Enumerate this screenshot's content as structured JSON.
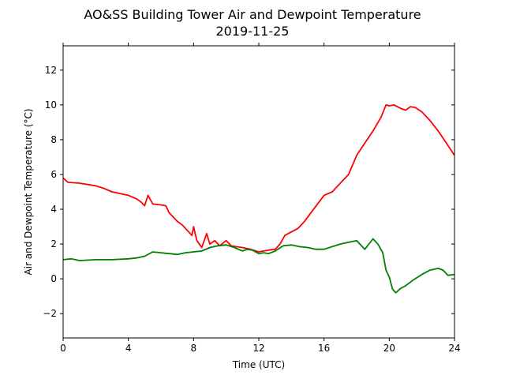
{
  "chart_data": {
    "type": "line",
    "title": "AO&SS Building Tower Air and Dewpoint Temperature",
    "subtitle": "2019-11-25",
    "xlabel": "Time (UTC)",
    "ylabel": "Air and Dewpoint Temperature (°C)",
    "xlim": [
      0,
      24
    ],
    "ylim": [
      -3.4,
      13.4
    ],
    "xticks": [
      0,
      4,
      8,
      12,
      16,
      20,
      24
    ],
    "yticks": [
      -2,
      0,
      2,
      4,
      6,
      8,
      10,
      12
    ],
    "xtick_labels": [
      "0",
      "4",
      "8",
      "12",
      "16",
      "20",
      "24"
    ],
    "ytick_labels": [
      "−2",
      "0",
      "2",
      "4",
      "6",
      "8",
      "10",
      "12"
    ],
    "grid": false,
    "legend": "none",
    "series": [
      {
        "color": "#ff0000",
        "x": [
          0,
          0.3,
          1,
          2,
          2.5,
          3,
          4,
          4.5,
          4.8,
          5.0,
          5.2,
          5.5,
          6,
          6.3,
          6.5,
          6.7,
          7,
          7.3,
          7.6,
          7.9,
          8.0,
          8.2,
          8.5,
          8.8,
          9.0,
          9.3,
          9.6,
          10,
          10.3,
          10.6,
          11,
          11.5,
          12,
          12.3,
          12.6,
          13.0,
          13.3,
          13.6,
          14.0,
          14.4,
          14.8,
          15.2,
          15.6,
          16,
          16.5,
          17,
          17.5,
          18,
          18.5,
          19,
          19.5,
          19.8,
          20,
          20.3,
          20.7,
          21,
          21.3,
          21.6,
          22,
          22.5,
          23,
          23.5,
          24
        ],
        "y": [
          5.8,
          5.55,
          5.5,
          5.35,
          5.2,
          5.0,
          4.8,
          4.6,
          4.4,
          4.2,
          4.8,
          4.3,
          4.25,
          4.2,
          3.8,
          3.6,
          3.3,
          3.1,
          2.8,
          2.5,
          3.0,
          2.2,
          1.8,
          2.6,
          2.0,
          2.2,
          1.9,
          2.2,
          1.9,
          1.85,
          1.8,
          1.7,
          1.55,
          1.6,
          1.65,
          1.7,
          2.0,
          2.5,
          2.7,
          2.9,
          3.3,
          3.8,
          4.3,
          4.8,
          5.0,
          5.5,
          6.0,
          7.1,
          7.8,
          8.5,
          9.3,
          10.0,
          9.95,
          10.0,
          9.8,
          9.7,
          9.9,
          9.85,
          9.6,
          9.1,
          8.5,
          7.8,
          7.1
        ]
      },
      {
        "color": "#008000",
        "x": [
          0,
          0.5,
          1,
          2,
          3,
          4,
          4.5,
          5,
          5.5,
          6,
          6.5,
          7,
          7.5,
          8,
          8.5,
          9,
          9.5,
          10,
          10.5,
          11,
          11.3,
          11.6,
          12,
          12.3,
          12.6,
          13,
          13.5,
          14,
          14.5,
          15,
          15.5,
          16,
          16.5,
          17,
          17.5,
          18,
          18.5,
          19,
          19.3,
          19.6,
          19.8,
          20,
          20.2,
          20.4,
          20.7,
          21,
          21.5,
          22,
          22.5,
          23,
          23.3,
          23.6,
          24
        ],
        "y": [
          1.1,
          1.15,
          1.05,
          1.1,
          1.1,
          1.15,
          1.2,
          1.3,
          1.55,
          1.5,
          1.45,
          1.4,
          1.5,
          1.55,
          1.6,
          1.8,
          1.9,
          1.95,
          1.8,
          1.6,
          1.7,
          1.65,
          1.45,
          1.5,
          1.45,
          1.6,
          1.9,
          1.95,
          1.85,
          1.8,
          1.7,
          1.7,
          1.85,
          2.0,
          2.1,
          2.2,
          1.7,
          2.3,
          2.0,
          1.5,
          0.5,
          0.1,
          -0.6,
          -0.8,
          -0.55,
          -0.4,
          -0.05,
          0.25,
          0.5,
          0.6,
          0.5,
          0.2,
          0.25
        ]
      }
    ]
  }
}
